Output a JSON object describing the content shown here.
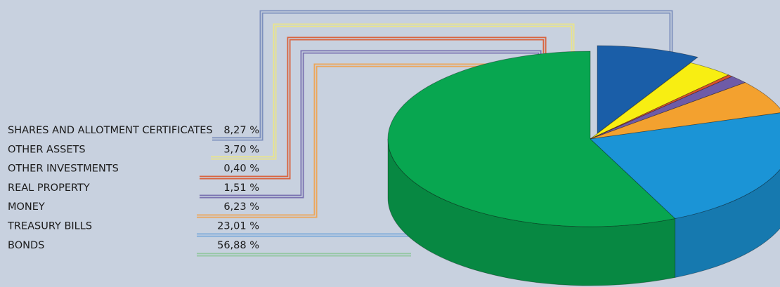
{
  "chart_data": {
    "type": "pie",
    "title": "",
    "unit": "%",
    "slices": [
      {
        "label": "SHARES AND ALLOTMENT CERTIFICATES",
        "value": 8.27,
        "value_text": "8,27 %",
        "color": "#1a5ea8"
      },
      {
        "label": "OTHER ASSETS",
        "value": 3.7,
        "value_text": "3,70 %",
        "color": "#f8ee12"
      },
      {
        "label": "OTHER INVESTMENTS",
        "value": 0.4,
        "value_text": "0,40 %",
        "color": "#d9522c"
      },
      {
        "label": "REAL PROPERTY",
        "value": 1.51,
        "value_text": "1,51 %",
        "color": "#6e5ba7"
      },
      {
        "label": "MONEY",
        "value": 6.23,
        "value_text": "6,23 %",
        "color": "#f3a12f"
      },
      {
        "label": "TREASURY BILLS",
        "value": 23.01,
        "value_text": "23,01 %",
        "color": "#1b94d6"
      },
      {
        "label": "BONDS",
        "value": 56.88,
        "value_text": "56,88 %",
        "color": "#08a650"
      }
    ],
    "style": "3d-exploded-pie",
    "leader_line_colors": [
      "#7d90bd",
      "#e9e48c",
      "#d9643f",
      "#7a72b1",
      "#eda65a",
      "#7aa9da",
      "#93c7a1"
    ]
  }
}
